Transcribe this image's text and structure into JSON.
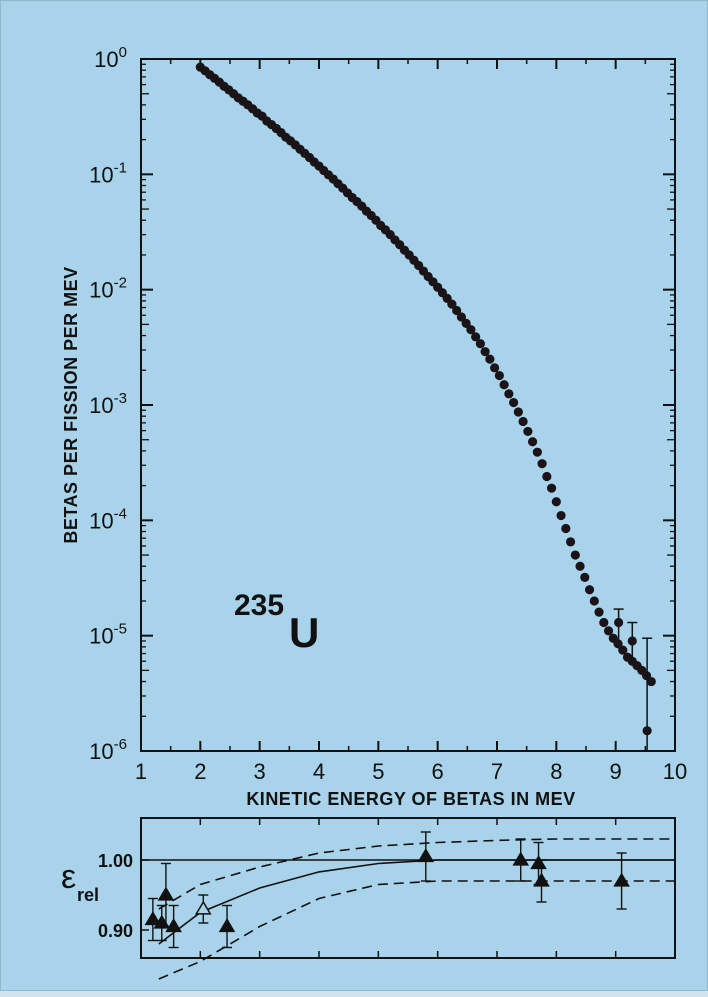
{
  "chart_data": [
    {
      "type": "scatter",
      "title": "",
      "annotation": {
        "mass_number": "235",
        "element": "U"
      },
      "xlabel": "KINETIC ENERGY OF BETAS IN MEV",
      "ylabel": "BETAS PER FISSION PER MEV",
      "xlim": [
        1,
        10
      ],
      "ylim": [
        1e-06,
        1
      ],
      "yscale": "log",
      "grid": false,
      "x_ticks": [
        "1",
        "2",
        "3",
        "4",
        "5",
        "6",
        "7",
        "8",
        "9",
        "10"
      ],
      "y_ticks": [
        {
          "base": "10",
          "exp": "0"
        },
        {
          "base": "10",
          "exp": "-1"
        },
        {
          "base": "10",
          "exp": "-2"
        },
        {
          "base": "10",
          "exp": "-3"
        },
        {
          "base": "10",
          "exp": "-4"
        },
        {
          "base": "10",
          "exp": "-5"
        },
        {
          "base": "10",
          "exp": "-6"
        }
      ],
      "points": [
        [
          2.0,
          0.85
        ],
        [
          2.08,
          0.79
        ],
        [
          2.16,
          0.73
        ],
        [
          2.24,
          0.68
        ],
        [
          2.32,
          0.63
        ],
        [
          2.4,
          0.58
        ],
        [
          2.48,
          0.54
        ],
        [
          2.56,
          0.5
        ],
        [
          2.64,
          0.46
        ],
        [
          2.72,
          0.43
        ],
        [
          2.8,
          0.4
        ],
        [
          2.88,
          0.37
        ],
        [
          2.96,
          0.34
        ],
        [
          3.04,
          0.32
        ],
        [
          3.12,
          0.29
        ],
        [
          3.2,
          0.27
        ],
        [
          3.28,
          0.25
        ],
        [
          3.36,
          0.23
        ],
        [
          3.44,
          0.21
        ],
        [
          3.52,
          0.195
        ],
        [
          3.6,
          0.18
        ],
        [
          3.68,
          0.165
        ],
        [
          3.76,
          0.152
        ],
        [
          3.84,
          0.14
        ],
        [
          3.92,
          0.128
        ],
        [
          4.0,
          0.118
        ],
        [
          4.08,
          0.108
        ],
        [
          4.16,
          0.099
        ],
        [
          4.24,
          0.091
        ],
        [
          4.32,
          0.083
        ],
        [
          4.4,
          0.076
        ],
        [
          4.48,
          0.069
        ],
        [
          4.56,
          0.063
        ],
        [
          4.64,
          0.058
        ],
        [
          4.72,
          0.053
        ],
        [
          4.8,
          0.048
        ],
        [
          4.88,
          0.044
        ],
        [
          4.96,
          0.04
        ],
        [
          5.04,
          0.036
        ],
        [
          5.12,
          0.033
        ],
        [
          5.2,
          0.03
        ],
        [
          5.28,
          0.027
        ],
        [
          5.36,
          0.0245
        ],
        [
          5.44,
          0.022
        ],
        [
          5.52,
          0.02
        ],
        [
          5.6,
          0.018
        ],
        [
          5.68,
          0.0162
        ],
        [
          5.76,
          0.0145
        ],
        [
          5.84,
          0.013
        ],
        [
          5.92,
          0.0117
        ],
        [
          6.0,
          0.0105
        ],
        [
          6.08,
          0.0094
        ],
        [
          6.16,
          0.0084
        ],
        [
          6.24,
          0.0075
        ],
        [
          6.32,
          0.0066
        ],
        [
          6.4,
          0.0058
        ],
        [
          6.48,
          0.0051
        ],
        [
          6.56,
          0.0045
        ],
        [
          6.64,
          0.0039
        ],
        [
          6.72,
          0.0034
        ],
        [
          6.8,
          0.0029
        ],
        [
          6.88,
          0.0025
        ],
        [
          6.96,
          0.0021
        ],
        [
          7.04,
          0.0018
        ],
        [
          7.12,
          0.0015
        ],
        [
          7.2,
          0.00125
        ],
        [
          7.28,
          0.00105
        ],
        [
          7.36,
          0.00087
        ],
        [
          7.44,
          0.00072
        ],
        [
          7.52,
          0.00059
        ],
        [
          7.6,
          0.00048
        ],
        [
          7.68,
          0.00039
        ],
        [
          7.76,
          0.00031
        ],
        [
          7.84,
          0.00024
        ],
        [
          7.92,
          0.00019
        ],
        [
          8.0,
          0.000145
        ],
        [
          8.08,
          0.00011
        ],
        [
          8.16,
          8.5e-05
        ],
        [
          8.24,
          6.5e-05
        ],
        [
          8.32,
          5e-05
        ],
        [
          8.4,
          4e-05
        ],
        [
          8.48,
          3.2e-05
        ],
        [
          8.56,
          2.5e-05
        ],
        [
          8.64,
          2e-05
        ],
        [
          8.72,
          1.6e-05
        ],
        [
          8.8,
          1.3e-05
        ],
        [
          8.88,
          1.1e-05
        ],
        [
          8.96,
          9.5e-06
        ],
        [
          9.04,
          8.5e-06
        ],
        [
          9.12,
          7.5e-06
        ],
        [
          9.2,
          6.5e-06
        ],
        [
          9.28,
          6e-06
        ],
        [
          9.36,
          5.5e-06
        ],
        [
          9.44,
          5e-06
        ],
        [
          9.52,
          4.5e-06
        ],
        [
          9.6,
          4e-06
        ]
      ],
      "error_bars": [
        {
          "x": 9.05,
          "y": 1.3e-05,
          "low": 9e-06,
          "high": 1.7e-05
        },
        {
          "x": 9.28,
          "y": 9e-06,
          "low": 6e-06,
          "high": 1.3e-05
        },
        {
          "x": 9.53,
          "y": 1.5e-06,
          "low": 1e-06,
          "high": 9.5e-06
        }
      ]
    },
    {
      "type": "scatter",
      "ylabel_main": "ε",
      "ylabel_sub": "rel",
      "xlim": [
        1,
        10
      ],
      "ylim": [
        0.86,
        1.06
      ],
      "y_ticks": [
        {
          "value": 1.0,
          "label": "1.00"
        },
        {
          "value": 0.9,
          "label": "0.90"
        }
      ],
      "grid": false,
      "points": [
        {
          "x": 1.2,
          "y": 0.915,
          "err": 0.03,
          "open": false
        },
        {
          "x": 1.35,
          "y": 0.91,
          "err": 0.025,
          "open": false
        },
        {
          "x": 1.42,
          "y": 0.95,
          "err": 0.045,
          "open": false
        },
        {
          "x": 1.55,
          "y": 0.905,
          "err": 0.03,
          "open": false
        },
        {
          "x": 2.05,
          "y": 0.93,
          "err": 0.02,
          "open": true
        },
        {
          "x": 2.45,
          "y": 0.905,
          "err": 0.03,
          "open": false
        },
        {
          "x": 5.8,
          "y": 1.005,
          "err": 0.035,
          "open": false
        },
        {
          "x": 7.4,
          "y": 1.0,
          "err": 0.03,
          "open": false
        },
        {
          "x": 7.7,
          "y": 0.995,
          "err": 0.03,
          "open": false
        },
        {
          "x": 7.75,
          "y": 0.97,
          "err": 0.03,
          "open": false
        },
        {
          "x": 9.1,
          "y": 0.97,
          "err": 0.04,
          "open": false
        }
      ],
      "reference_line": 1.0,
      "fit_curve": [
        [
          1.3,
          0.88
        ],
        [
          2,
          0.925
        ],
        [
          3,
          0.96
        ],
        [
          4,
          0.983
        ],
        [
          5,
          0.995
        ],
        [
          6,
          1.0
        ],
        [
          7,
          1.0
        ],
        [
          8,
          1.0
        ],
        [
          9,
          1.0
        ],
        [
          10,
          1.0
        ]
      ],
      "band_upper": [
        [
          1.3,
          0.93
        ],
        [
          2,
          0.965
        ],
        [
          3,
          0.99
        ],
        [
          4,
          1.01
        ],
        [
          5,
          1.02
        ],
        [
          6,
          1.025
        ],
        [
          7,
          1.028
        ],
        [
          8,
          1.03
        ],
        [
          9,
          1.03
        ],
        [
          10,
          1.03
        ]
      ],
      "band_lower": [
        [
          1.3,
          0.83
        ],
        [
          2,
          0.855
        ],
        [
          3,
          0.905
        ],
        [
          4,
          0.945
        ],
        [
          5,
          0.965
        ],
        [
          6,
          0.97
        ],
        [
          7,
          0.97
        ],
        [
          8,
          0.97
        ],
        [
          9,
          0.97
        ],
        [
          10,
          0.97
        ]
      ]
    }
  ]
}
